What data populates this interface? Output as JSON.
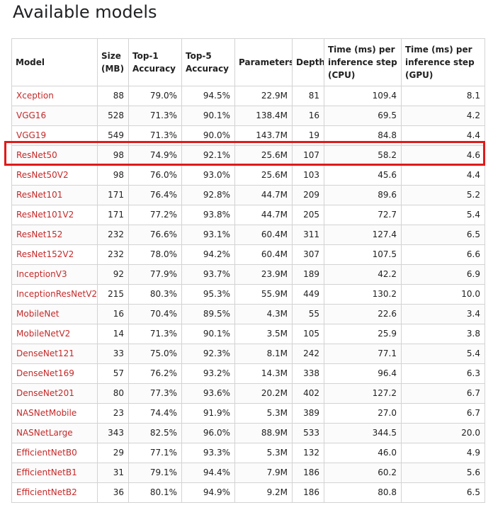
{
  "page": {
    "title": "Available models"
  },
  "table": {
    "headers": {
      "model": "Model",
      "size": "Size (MB)",
      "top1": "Top-1 Accuracy",
      "top5": "Top-5 Accuracy",
      "params": "Parameters",
      "depth": "Depth",
      "cpu": "Time (ms) per inference step (CPU)",
      "gpu": "Time (ms) per inference step (GPU)"
    },
    "rows": [
      {
        "model": "Xception",
        "size": "88",
        "top1": "79.0%",
        "top5": "94.5%",
        "params": "22.9M",
        "depth": "81",
        "cpu": "109.4",
        "gpu": "8.1"
      },
      {
        "model": "VGG16",
        "size": "528",
        "top1": "71.3%",
        "top5": "90.1%",
        "params": "138.4M",
        "depth": "16",
        "cpu": "69.5",
        "gpu": "4.2"
      },
      {
        "model": "VGG19",
        "size": "549",
        "top1": "71.3%",
        "top5": "90.0%",
        "params": "143.7M",
        "depth": "19",
        "cpu": "84.8",
        "gpu": "4.4"
      },
      {
        "model": "ResNet50",
        "size": "98",
        "top1": "74.9%",
        "top5": "92.1%",
        "params": "25.6M",
        "depth": "107",
        "cpu": "58.2",
        "gpu": "4.6"
      },
      {
        "model": "ResNet50V2",
        "size": "98",
        "top1": "76.0%",
        "top5": "93.0%",
        "params": "25.6M",
        "depth": "103",
        "cpu": "45.6",
        "gpu": "4.4"
      },
      {
        "model": "ResNet101",
        "size": "171",
        "top1": "76.4%",
        "top5": "92.8%",
        "params": "44.7M",
        "depth": "209",
        "cpu": "89.6",
        "gpu": "5.2"
      },
      {
        "model": "ResNet101V2",
        "size": "171",
        "top1": "77.2%",
        "top5": "93.8%",
        "params": "44.7M",
        "depth": "205",
        "cpu": "72.7",
        "gpu": "5.4"
      },
      {
        "model": "ResNet152",
        "size": "232",
        "top1": "76.6%",
        "top5": "93.1%",
        "params": "60.4M",
        "depth": "311",
        "cpu": "127.4",
        "gpu": "6.5"
      },
      {
        "model": "ResNet152V2",
        "size": "232",
        "top1": "78.0%",
        "top5": "94.2%",
        "params": "60.4M",
        "depth": "307",
        "cpu": "107.5",
        "gpu": "6.6"
      },
      {
        "model": "InceptionV3",
        "size": "92",
        "top1": "77.9%",
        "top5": "93.7%",
        "params": "23.9M",
        "depth": "189",
        "cpu": "42.2",
        "gpu": "6.9"
      },
      {
        "model": "InceptionResNetV2",
        "size": "215",
        "top1": "80.3%",
        "top5": "95.3%",
        "params": "55.9M",
        "depth": "449",
        "cpu": "130.2",
        "gpu": "10.0"
      },
      {
        "model": "MobileNet",
        "size": "16",
        "top1": "70.4%",
        "top5": "89.5%",
        "params": "4.3M",
        "depth": "55",
        "cpu": "22.6",
        "gpu": "3.4"
      },
      {
        "model": "MobileNetV2",
        "size": "14",
        "top1": "71.3%",
        "top5": "90.1%",
        "params": "3.5M",
        "depth": "105",
        "cpu": "25.9",
        "gpu": "3.8"
      },
      {
        "model": "DenseNet121",
        "size": "33",
        "top1": "75.0%",
        "top5": "92.3%",
        "params": "8.1M",
        "depth": "242",
        "cpu": "77.1",
        "gpu": "5.4"
      },
      {
        "model": "DenseNet169",
        "size": "57",
        "top1": "76.2%",
        "top5": "93.2%",
        "params": "14.3M",
        "depth": "338",
        "cpu": "96.4",
        "gpu": "6.3"
      },
      {
        "model": "DenseNet201",
        "size": "80",
        "top1": "77.3%",
        "top5": "93.6%",
        "params": "20.2M",
        "depth": "402",
        "cpu": "127.2",
        "gpu": "6.7"
      },
      {
        "model": "NASNetMobile",
        "size": "23",
        "top1": "74.4%",
        "top5": "91.9%",
        "params": "5.3M",
        "depth": "389",
        "cpu": "27.0",
        "gpu": "6.7"
      },
      {
        "model": "NASNetLarge",
        "size": "343",
        "top1": "82.5%",
        "top5": "96.0%",
        "params": "88.9M",
        "depth": "533",
        "cpu": "344.5",
        "gpu": "20.0"
      },
      {
        "model": "EfficientNetB0",
        "size": "29",
        "top1": "77.1%",
        "top5": "93.3%",
        "params": "5.3M",
        "depth": "132",
        "cpu": "46.0",
        "gpu": "4.9"
      },
      {
        "model": "EfficientNetB1",
        "size": "31",
        "top1": "79.1%",
        "top5": "94.4%",
        "params": "7.9M",
        "depth": "186",
        "cpu": "60.2",
        "gpu": "5.6"
      },
      {
        "model": "EfficientNetB2",
        "size": "36",
        "top1": "80.1%",
        "top5": "94.9%",
        "params": "9.2M",
        "depth": "186",
        "cpu": "80.8",
        "gpu": "6.5"
      }
    ]
  },
  "highlight": {
    "model": "ResNet50",
    "color": "#e01a1a"
  },
  "colors": {
    "link": "#c62828",
    "border": "#d3d3d3",
    "text": "#212121"
  }
}
